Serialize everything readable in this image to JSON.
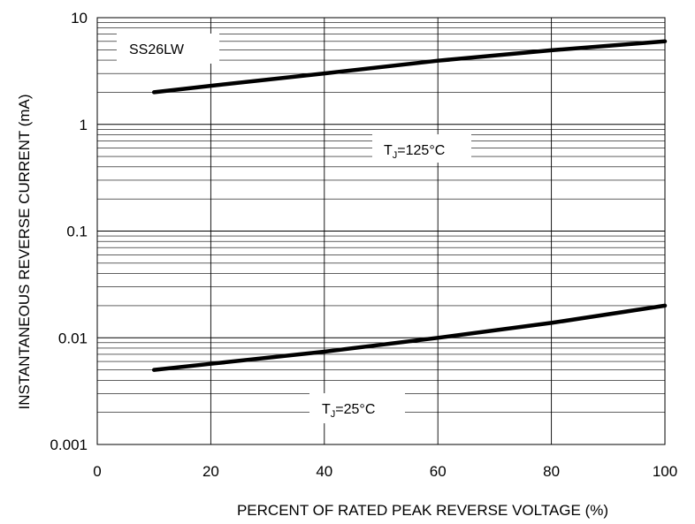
{
  "chart_data": {
    "type": "line",
    "title": "",
    "xlabel": "PERCENT OF RATED PEAK REVERSE VOLTAGE (%)",
    "ylabel": "INSTANTANEOUS REVERSE CURRENT (mA)",
    "xlim": [
      0,
      100
    ],
    "ylim": [
      0.001,
      10
    ],
    "yscale": "log",
    "grid": true,
    "x_ticks": [
      "0",
      "20",
      "40",
      "60",
      "80",
      "100"
    ],
    "y_ticks": [
      "0.001",
      "0.01",
      "0.1",
      "1",
      "10"
    ],
    "device_label": "SS26LW",
    "series": [
      {
        "label_main": "T",
        "label_sub": "J",
        "label_rest": "=125°C",
        "points": [
          [
            10,
            2.0
          ],
          [
            20,
            2.3
          ],
          [
            40,
            3.0
          ],
          [
            60,
            3.95
          ],
          [
            80,
            4.95
          ],
          [
            100,
            6.0
          ]
        ]
      },
      {
        "label_main": "T",
        "label_sub": "J",
        "label_rest": "=25°C",
        "points": [
          [
            10,
            0.005
          ],
          [
            20,
            0.0057
          ],
          [
            40,
            0.0074
          ],
          [
            60,
            0.01
          ],
          [
            80,
            0.0138
          ],
          [
            100,
            0.02
          ]
        ]
      }
    ]
  }
}
